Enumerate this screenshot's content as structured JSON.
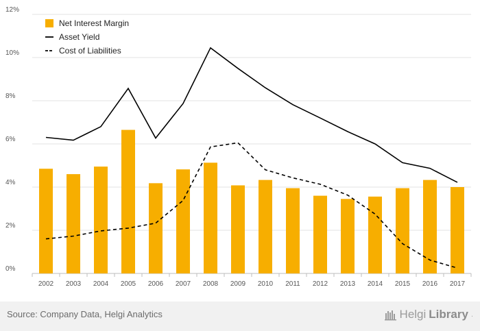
{
  "chart_data": {
    "type": "bar",
    "categories": [
      "2002",
      "2003",
      "2004",
      "2005",
      "2006",
      "2007",
      "2008",
      "2009",
      "2010",
      "2011",
      "2012",
      "2013",
      "2014",
      "2015",
      "2016",
      "2017"
    ],
    "ylim": [
      0,
      12
    ],
    "yticks": [
      0,
      2,
      4,
      6,
      8,
      10,
      12
    ],
    "ytick_labels": [
      "0%",
      "2%",
      "4%",
      "6%",
      "8%",
      "10%",
      "12%"
    ],
    "grid": true,
    "legend": "top-left",
    "series": [
      {
        "name": "Net Interest Margin",
        "kind": "bar",
        "color": "#f7ae00",
        "values": [
          4.85,
          4.6,
          4.95,
          6.65,
          4.18,
          4.82,
          5.13,
          4.08,
          4.33,
          3.95,
          3.6,
          3.45,
          3.56,
          3.95,
          4.33,
          4.0
        ]
      },
      {
        "name": "Asset Yield",
        "kind": "line",
        "color": "#000000",
        "dash": "solid",
        "values": [
          6.3,
          6.17,
          6.8,
          8.57,
          6.27,
          7.87,
          10.45,
          9.5,
          8.6,
          7.82,
          7.2,
          6.57,
          6.0,
          5.13,
          4.87,
          4.22
        ]
      },
      {
        "name": "Cost of Liabilities",
        "kind": "line",
        "color": "#000000",
        "dash": "dashed",
        "values": [
          1.6,
          1.73,
          1.97,
          2.1,
          2.33,
          3.38,
          5.86,
          6.05,
          4.8,
          4.43,
          4.13,
          3.63,
          2.75,
          1.38,
          0.62,
          0.25
        ]
      }
    ]
  },
  "footer": {
    "source": "Source: Company Data, Helgi Analytics",
    "brand_light": "Helgi",
    "brand_bold": "Library",
    "brand_suffix": "."
  }
}
